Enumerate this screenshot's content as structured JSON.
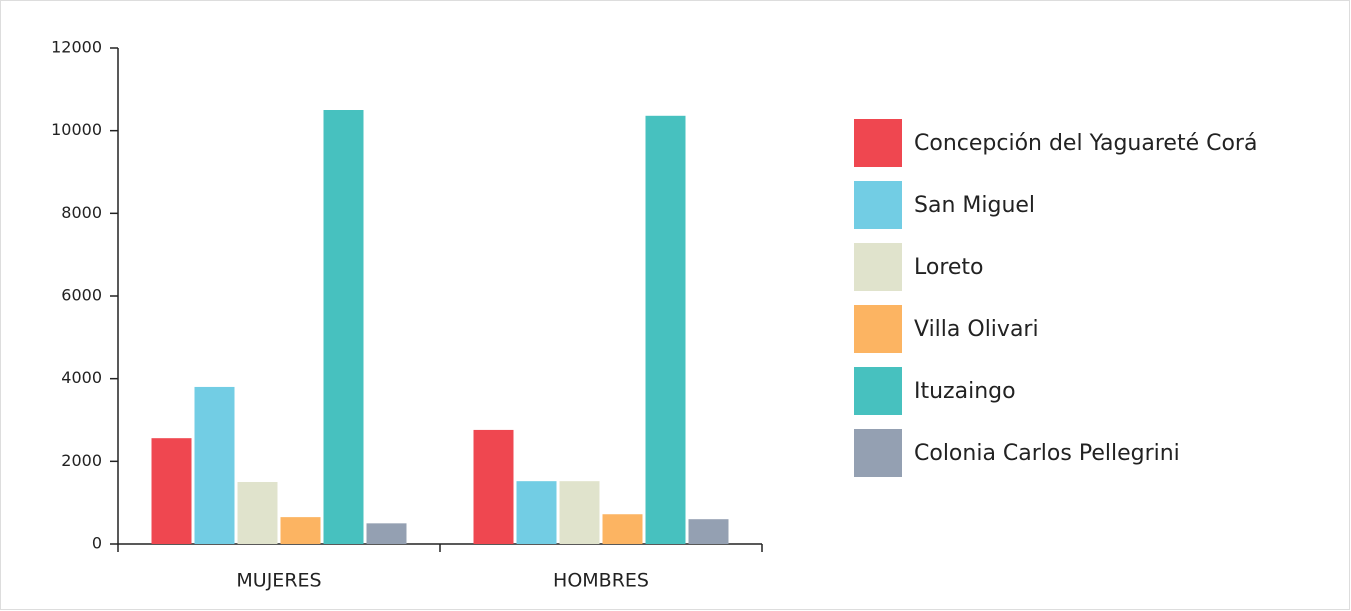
{
  "chart_data": {
    "type": "bar",
    "categories": [
      "MUJERES",
      "HOMBRES"
    ],
    "series": [
      {
        "name": "Concepción del Yaguareté Corá",
        "color": "#ef4750",
        "values": [
          2560,
          2760
        ]
      },
      {
        "name": "San Miguel",
        "color": "#72cde4",
        "values": [
          3800,
          1520
        ]
      },
      {
        "name": "Loreto",
        "color": "#e0e3cc",
        "values": [
          1500,
          1520
        ]
      },
      {
        "name": "Villa Olivari",
        "color": "#fcb462",
        "values": [
          650,
          720
        ]
      },
      {
        "name": "Ituzaingo",
        "color": "#47c1bf",
        "values": [
          10500,
          10360
        ]
      },
      {
        "name": "Colonia Carlos Pellegrini",
        "color": "#94a0b2",
        "values": [
          500,
          600
        ]
      }
    ],
    "ylim": [
      0,
      12000
    ],
    "yticks": [
      0,
      2000,
      4000,
      6000,
      8000,
      10000,
      12000
    ],
    "grid": false
  }
}
